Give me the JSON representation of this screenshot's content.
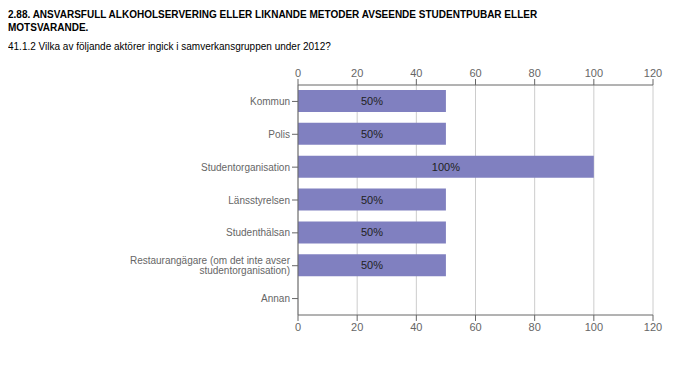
{
  "chart_data": {
    "type": "bar",
    "orientation": "horizontal",
    "title": "2.88. ANSVARSFULL ALKOHOLSERVERING ELLER LIKNANDE METODER AVSEENDE STUDENTPUBAR ELLER\nMOTSVARANDE.",
    "subtitle": "41.1.2 Vilka av följande aktörer ingick i samverkansgruppen under 2012?",
    "categories": [
      "Kommun",
      "Polis",
      "Studentorganisation",
      "Länsstyrelsen",
      "Studenthälsan",
      "Restaurangägare (om det inte avser studentorganisation)",
      "Annan"
    ],
    "values": [
      50,
      50,
      100,
      50,
      50,
      50,
      0
    ],
    "value_labels": [
      "50%",
      "50%",
      "100%",
      "50%",
      "50%",
      "50%",
      null
    ],
    "data_labels": true,
    "color": "#8080c0",
    "xlim": [
      0,
      120
    ],
    "xticks": [
      0,
      20,
      40,
      60,
      80,
      100,
      120
    ],
    "grid": true
  }
}
